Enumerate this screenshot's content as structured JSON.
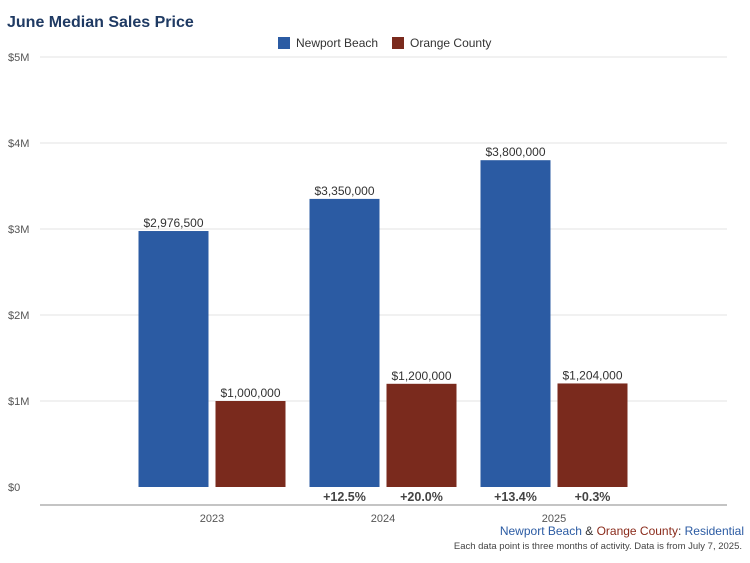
{
  "title": "June Median Sales Price",
  "colors": {
    "newport": "#2b5ba3",
    "orange": "#7a2a1d",
    "nb_text": "#2b5ba3",
    "oc_text": "#8a2a1a",
    "res_text": "#2b5ba3"
  },
  "legend": [
    {
      "name": "Newport Beach",
      "color": "#2b5ba3"
    },
    {
      "name": "Orange County",
      "color": "#7a2a1d"
    }
  ],
  "footer": {
    "source_nb": "Newport Beach",
    "source_amp": " & ",
    "source_oc": "Orange County",
    "source_colon": ": ",
    "source_type": "Residential",
    "note": "Each data point is three months of activity. Data is from July 7, 2025."
  },
  "chart_data": {
    "type": "bar",
    "title": "June Median Sales Price",
    "categories": [
      "2023",
      "2024",
      "2025"
    ],
    "series": [
      {
        "name": "Newport Beach",
        "values": [
          2976500,
          3350000,
          3800000
        ],
        "labels": [
          "$2,976,500",
          "$3,350,000",
          "$3,800,000"
        ],
        "changes": [
          "",
          "+12.5%",
          "+13.4%"
        ]
      },
      {
        "name": "Orange County",
        "values": [
          1000000,
          1200000,
          1204000
        ],
        "labels": [
          "$1,000,000",
          "$1,200,000",
          "$1,204,000"
        ],
        "changes": [
          "",
          "+20.0%",
          "+0.3%"
        ]
      }
    ],
    "yticks": [
      "$0",
      "$1M",
      "$2M",
      "$3M",
      "$4M",
      "$5M"
    ],
    "ylim": [
      0,
      5000000
    ],
    "grid": true,
    "legend_position": "top-center"
  }
}
